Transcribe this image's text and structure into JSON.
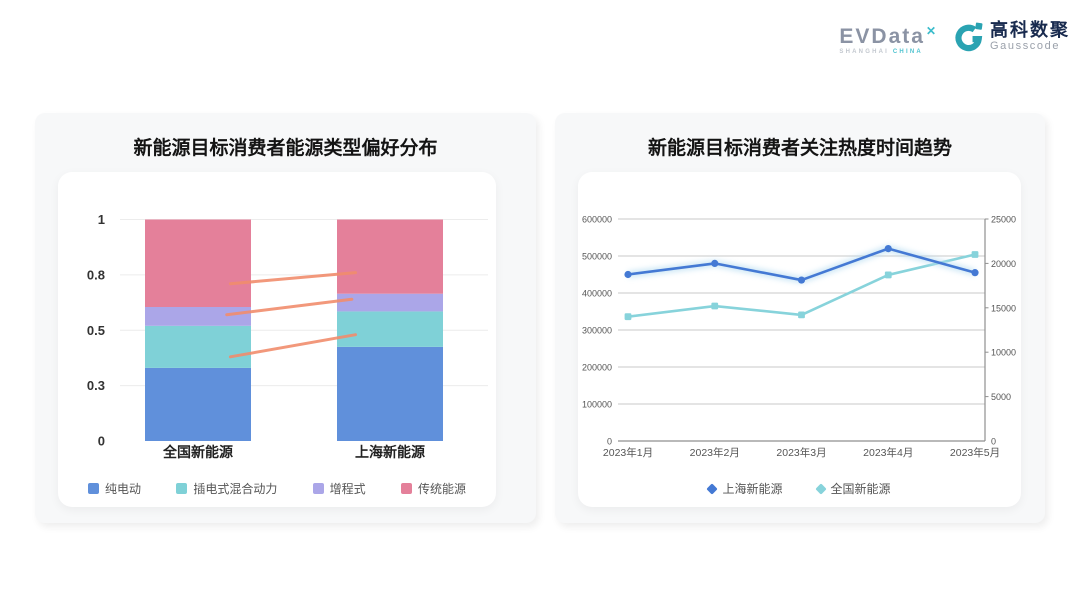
{
  "header": {
    "evdata": {
      "wordmark": "EVData",
      "mark": "✕",
      "sub_left": "SHANGHAI",
      "sub_right": "CHINA"
    },
    "gausscode": {
      "name_cn": "高科数聚",
      "name_en": "Gausscode"
    }
  },
  "colors": {
    "accent_teal": "#2aa3b2",
    "bar_blue": "#6090db",
    "bar_teal": "#7fd1d7",
    "bar_purple": "#aba6e8",
    "bar_pink": "#e4809a",
    "line_blue": "#4479d4",
    "line_teal": "#87d3db",
    "annotation_salmon": "#f18d6d"
  },
  "chart_data": [
    {
      "type": "bar",
      "stacked": true,
      "title": "新能源目标消费者能源类型偏好分布",
      "categories": [
        "全国新能源",
        "上海新能源"
      ],
      "series": [
        {
          "name": "纯电动",
          "color": "#6090db",
          "values": [
            0.33,
            0.425
          ]
        },
        {
          "name": "插电式混合动力",
          "color": "#7fd1d7",
          "values": [
            0.19,
            0.16
          ]
        },
        {
          "name": "增程式",
          "color": "#aba6e8",
          "values": [
            0.085,
            0.08
          ]
        },
        {
          "name": "传统能源",
          "color": "#e4809a",
          "values": [
            0.395,
            0.335
          ]
        }
      ],
      "ylim": [
        0,
        1
      ],
      "yticks": [
        {
          "value": 0,
          "label": "0"
        },
        {
          "value": 0.25,
          "label": "0.3"
        },
        {
          "value": 0.5,
          "label": "0.5"
        },
        {
          "value": 0.75,
          "label": "0.8"
        },
        {
          "value": 1,
          "label": "1"
        }
      ],
      "grid": true,
      "legend_position": "bottom",
      "annotation_lines": {
        "color": "#f18d6d",
        "segments": [
          {
            "x1": 0.3,
            "y1": 0.71,
            "x2": 0.64,
            "y2": 0.76
          },
          {
            "x1": 0.29,
            "y1": 0.57,
            "x2": 0.63,
            "y2": 0.64
          },
          {
            "x1": 0.3,
            "y1": 0.38,
            "x2": 0.64,
            "y2": 0.48
          }
        ]
      }
    },
    {
      "type": "line",
      "title": "新能源目标消费者关注热度时间趋势",
      "x": [
        "2023年1月",
        "2023年2月",
        "2023年3月",
        "2023年4月",
        "2023年5月"
      ],
      "series": [
        {
          "name": "上海新能源",
          "axis": "left",
          "color": "#4479d4",
          "marker": "circle",
          "values": [
            450000,
            480000,
            435000,
            520000,
            455000
          ]
        },
        {
          "name": "全国新能源",
          "axis": "right",
          "color": "#87d3db",
          "marker": "square",
          "values": [
            14000,
            15200,
            14200,
            18700,
            21000
          ]
        }
      ],
      "left_axis": {
        "min": 0,
        "max": 600000,
        "ticks": [
          "0",
          "100000",
          "200000",
          "300000",
          "400000",
          "500000",
          "600000"
        ]
      },
      "right_axis": {
        "min": 0,
        "max": 25000,
        "ticks": [
          "0",
          "5000",
          "10000",
          "15000",
          "20000",
          "25000"
        ]
      },
      "grid": true,
      "legend_position": "bottom"
    }
  ]
}
